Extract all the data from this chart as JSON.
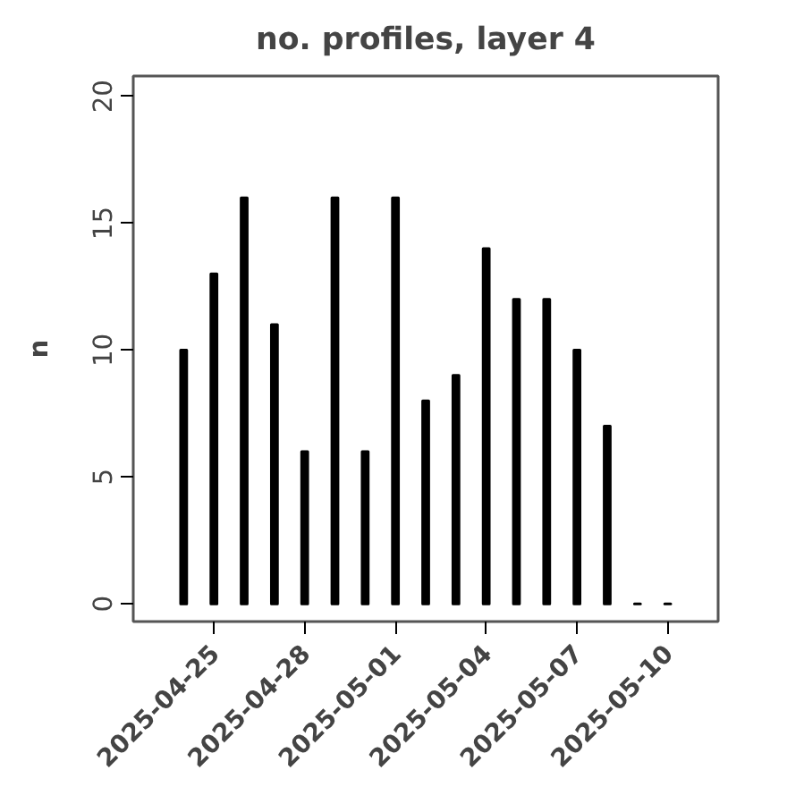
{
  "chart_data": {
    "type": "bar",
    "title": "no. profiles, layer 4",
    "ylabel": "n",
    "x": [
      "2025-04-24",
      "2025-04-25",
      "2025-04-26",
      "2025-04-27",
      "2025-04-28",
      "2025-04-29",
      "2025-04-30",
      "2025-05-01",
      "2025-05-02",
      "2025-05-03",
      "2025-05-04",
      "2025-05-05",
      "2025-05-06",
      "2025-05-07",
      "2025-05-08",
      "2025-05-09",
      "2025-05-10"
    ],
    "values": [
      10,
      13,
      16,
      11,
      6,
      16,
      6,
      16,
      8,
      9,
      14,
      12,
      12,
      10,
      7,
      0,
      0
    ],
    "color": "#000000",
    "xlim": [
      "2025-04-22T08:00",
      "2025-05-11T16:00"
    ],
    "xticks": [
      {
        "value": "2025-04-25",
        "label": "2025-04-25"
      },
      {
        "value": "2025-04-28",
        "label": "2025-04-28"
      },
      {
        "value": "2025-05-01",
        "label": "2025-05-01"
      },
      {
        "value": "2025-05-04",
        "label": "2025-05-04"
      },
      {
        "value": "2025-05-07",
        "label": "2025-05-07"
      },
      {
        "value": "2025-05-10",
        "label": "2025-05-10"
      }
    ],
    "ylim": [
      -0.7,
      20.8
    ],
    "yticks": [
      0,
      5,
      10,
      15,
      20
    ],
    "grid": false
  }
}
